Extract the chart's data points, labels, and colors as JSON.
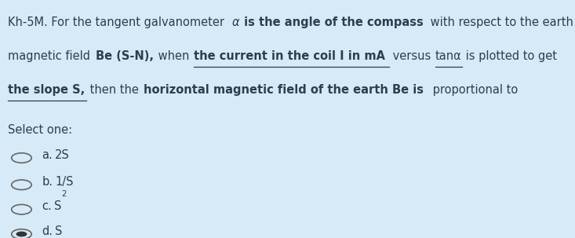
{
  "background_color": "#d6eaf8",
  "text_color": "#2c3e50",
  "font_size": 10.5,
  "option_font_size": 10.5,
  "select_label": "Select one:",
  "line1": [
    {
      "text": "Kh-5M. For the tangent galvanometer ",
      "bold": false,
      "italic": false,
      "underline": false
    },
    {
      "text": "α",
      "bold": false,
      "italic": true,
      "underline": false
    },
    {
      "text": " is the angle of the compass",
      "bold": true,
      "italic": false,
      "underline": false
    },
    {
      "text": " with respect to the earth",
      "bold": false,
      "italic": false,
      "underline": false
    }
  ],
  "line2": [
    {
      "text": "magnetic field ",
      "bold": false,
      "italic": false,
      "underline": false
    },
    {
      "text": "Be (S-N),",
      "bold": true,
      "italic": false,
      "underline": false
    },
    {
      "text": " when ",
      "bold": false,
      "italic": false,
      "underline": false
    },
    {
      "text": "the current in the coil I in mA",
      "bold": true,
      "italic": false,
      "underline": true
    },
    {
      "text": " versus ",
      "bold": false,
      "italic": false,
      "underline": false
    },
    {
      "text": "tanα",
      "bold": false,
      "italic": false,
      "underline": true
    },
    {
      "text": " is plotted to get",
      "bold": false,
      "italic": false,
      "underline": false
    }
  ],
  "line3": [
    {
      "text": "the slope S,",
      "bold": true,
      "italic": false,
      "underline": true
    },
    {
      "text": " then the ",
      "bold": false,
      "italic": false,
      "underline": false
    },
    {
      "text": "horizontal magnetic field of the earth Be is",
      "bold": true,
      "italic": false,
      "underline": false
    },
    {
      "text": " proportional to",
      "bold": false,
      "italic": false,
      "underline": false
    }
  ],
  "options": [
    {
      "letter": "a.",
      "text": "2S",
      "sup": "",
      "selected": false
    },
    {
      "letter": "b.",
      "text": "1/S",
      "sup": "",
      "selected": false
    },
    {
      "letter": "c.",
      "text": "S",
      "sup": "2",
      "selected": false
    },
    {
      "letter": "d.",
      "text": "S",
      "sup": "",
      "selected": true
    }
  ]
}
